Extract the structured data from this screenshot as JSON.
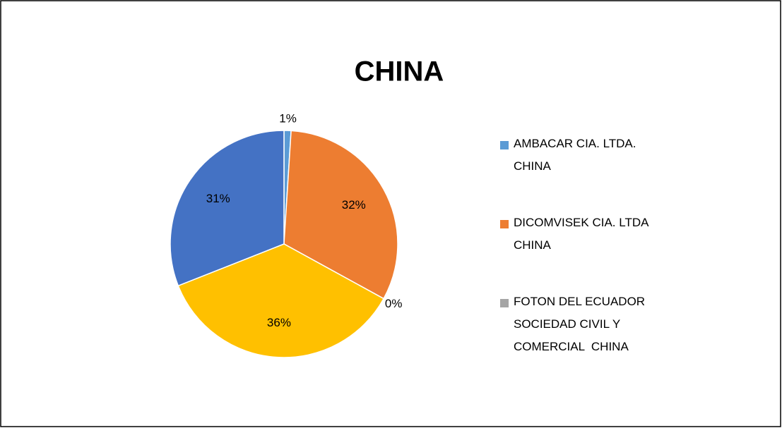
{
  "chart_data": {
    "type": "pie",
    "title": "CHINA",
    "categories": [
      "AMBACAR CIA. LTDA. CHINA",
      "DICOMVISEK CIA. LTDA CHINA",
      "FOTON DEL ECUADOR SOCIEDAD CIVIL Y COMERCIAL  CHINA",
      null,
      null
    ],
    "values": [
      1,
      32,
      0,
      36,
      31
    ],
    "value_labels": [
      "1%",
      "32%",
      "0%",
      "36%",
      "31%"
    ],
    "colors": [
      "#5b9bd5",
      "#ed7d31",
      "#a5a5a5",
      "#ffc000",
      "#4472c4"
    ],
    "legend": "right"
  }
}
